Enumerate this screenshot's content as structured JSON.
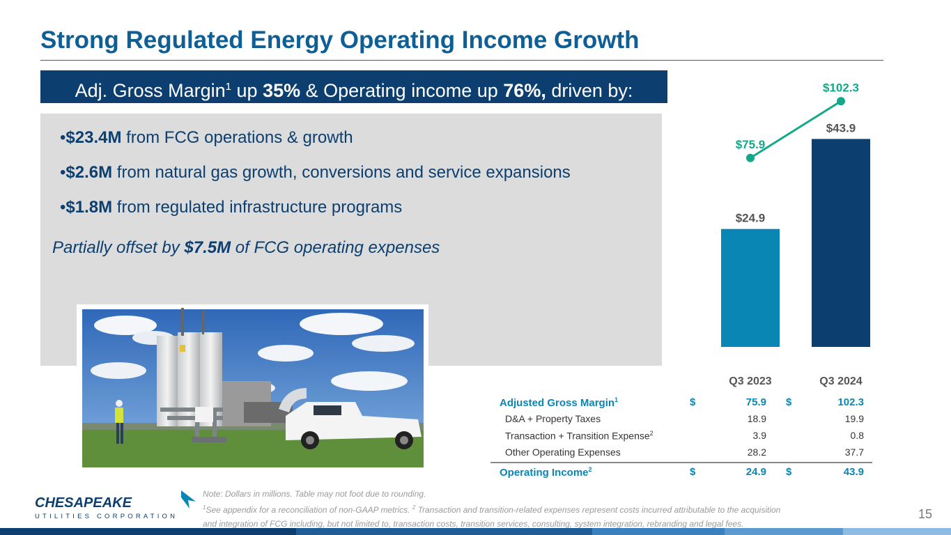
{
  "title": "Strong Regulated Energy Operating Income Growth",
  "banner": {
    "part1": "Adj. Gross Margin",
    "sup": "1",
    "part2": " up ",
    "pct1": "35%",
    "part3": " & Operating income up ",
    "pct2": "76%,",
    "part4": " driven by:"
  },
  "bullets": [
    {
      "prefix": "•",
      "amount": "$23.4M",
      "text": " from FCG operations & growth"
    },
    {
      "prefix": "•",
      "amount": "$2.6M",
      "text": " from natural gas growth, conversions and service expansions"
    },
    {
      "prefix": "•",
      "amount": "$1.8M",
      "text": " from regulated infrastructure programs"
    }
  ],
  "offset": {
    "pre": "Partially offset by ",
    "amount": "$7.5M",
    "post": " of FCG operating expenses"
  },
  "chart_data": {
    "type": "bar",
    "categories": [
      "Q3 2023",
      "Q3 2024"
    ],
    "series": [
      {
        "values": [
          24.9,
          43.9
        ],
        "labels": [
          "$24.9",
          "$43.9"
        ],
        "colors": [
          "#0a86b4",
          "#0c3f6f"
        ]
      },
      {
        "type": "line",
        "values": [
          75.9,
          102.3
        ],
        "labels": [
          "$75.9",
          "$102.3"
        ],
        "color": "#13a88a"
      }
    ]
  },
  "table": {
    "rows": [
      {
        "label": "Adjusted Gross Margin",
        "sup": "1",
        "cur1": "$",
        "v1": "75.9",
        "cur2": "$",
        "v2": "102.3",
        "highlight": true
      },
      {
        "label": "D&A + Property Taxes",
        "sup": "",
        "cur1": "",
        "v1": "18.9",
        "cur2": "",
        "v2": "19.9",
        "highlight": false
      },
      {
        "label": "Transaction + Transition Expense",
        "sup": "2",
        "cur1": "",
        "v1": "3.9",
        "cur2": "",
        "v2": "0.8",
        "highlight": false
      },
      {
        "label": "Other Operating Expenses",
        "sup": "",
        "cur1": "",
        "v1": "28.2",
        "cur2": "",
        "v2": "37.7",
        "highlight": false
      },
      {
        "label": "Operating Income",
        "sup": "2",
        "cur1": "$",
        "v1": "24.9",
        "cur2": "$",
        "v2": "43.9",
        "highlight": true
      }
    ]
  },
  "footnote": {
    "line1": "Note: Dollars in millions. Table may not foot due to rounding.",
    "sup1": "1",
    "line2a": "See appendix for a reconciliation of non-GAAP metrics. ",
    "sup2": "2",
    "line2b": " Transaction and transition-related expenses represent costs incurred attributable to the acquisition",
    "line3": "and integration of FCG including, but not limited to, transaction costs, transition services, consulting, system integration, rebranding and legal fees."
  },
  "logo": {
    "name": "CHESAPEAKE",
    "sub": "UTILITIES CORPORATION"
  },
  "page_number": "15",
  "colors": {
    "primary": "#0c3f6f",
    "accent": "#0a86b4",
    "line": "#13a88a",
    "title": "#0e5f95"
  }
}
